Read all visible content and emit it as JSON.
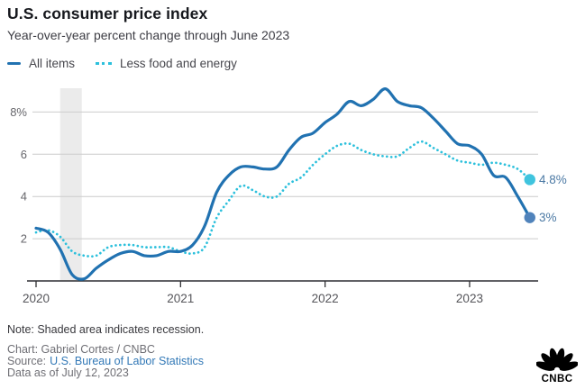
{
  "header": {
    "title": "U.S. consumer price index",
    "subtitle": "Year-over-year percent change through June 2023"
  },
  "chart_data": {
    "type": "line",
    "title": "U.S. consumer price index",
    "subtitle": "Year-over-year percent change through June 2023",
    "unit": "percent",
    "x_start": "2020-01",
    "x_end": "2023-06",
    "x_tick_labels": [
      "2020",
      "2021",
      "2022",
      "2023"
    ],
    "y_ticks": [
      2,
      4,
      6,
      8
    ],
    "y_tick_labels": [
      "2",
      "4",
      "6",
      "8%"
    ],
    "ylim": [
      0,
      9.3
    ],
    "grid": "horizontal",
    "legend_position": "top-left",
    "recession_band": {
      "start": "2020-03",
      "end": "2020-04"
    },
    "colors": {
      "gridline": "#cccccc",
      "axis": "#2f2f33",
      "recession_band": "#ebebeb",
      "end_label_text": "#4b79a4",
      "tick_label": "#55555a"
    },
    "series": [
      {
        "name": "All items",
        "style": "solid",
        "color": "#2172b1",
        "dot_color": "#5083bb",
        "end_label": "3%",
        "values": [
          2.5,
          2.3,
          1.5,
          0.3,
          0.1,
          0.6,
          1.0,
          1.3,
          1.4,
          1.2,
          1.2,
          1.4,
          1.4,
          1.7,
          2.6,
          4.2,
          5.0,
          5.4,
          5.4,
          5.3,
          5.4,
          6.2,
          6.8,
          7.0,
          7.5,
          7.9,
          8.5,
          8.3,
          8.6,
          9.1,
          8.5,
          8.3,
          8.2,
          7.7,
          7.1,
          6.5,
          6.4,
          6.0,
          5.0,
          4.9,
          4.0,
          3.0
        ]
      },
      {
        "name": "Less food and energy",
        "style": "dotted",
        "color": "#2cc0dc",
        "dot_color": "#3fc4de",
        "end_label": "4.8%",
        "values": [
          2.3,
          2.4,
          2.1,
          1.4,
          1.2,
          1.2,
          1.6,
          1.7,
          1.7,
          1.6,
          1.6,
          1.6,
          1.4,
          1.3,
          1.6,
          3.0,
          3.8,
          4.5,
          4.3,
          4.0,
          4.0,
          4.6,
          4.9,
          5.5,
          6.0,
          6.4,
          6.5,
          6.2,
          6.0,
          5.9,
          5.9,
          6.3,
          6.6,
          6.3,
          6.0,
          5.7,
          5.6,
          5.5,
          5.6,
          5.5,
          5.3,
          4.8
        ]
      }
    ]
  },
  "footer": {
    "note": "Note: Shaded area indicates recession.",
    "credit": "Chart: Gabriel Cortes / CNBC",
    "source_label": "Source:",
    "source_link": "U.S. Bureau of Labor Statistics",
    "data_as_of": "Data as of July 12, 2023"
  },
  "logo": {
    "text": "CNBC"
  }
}
